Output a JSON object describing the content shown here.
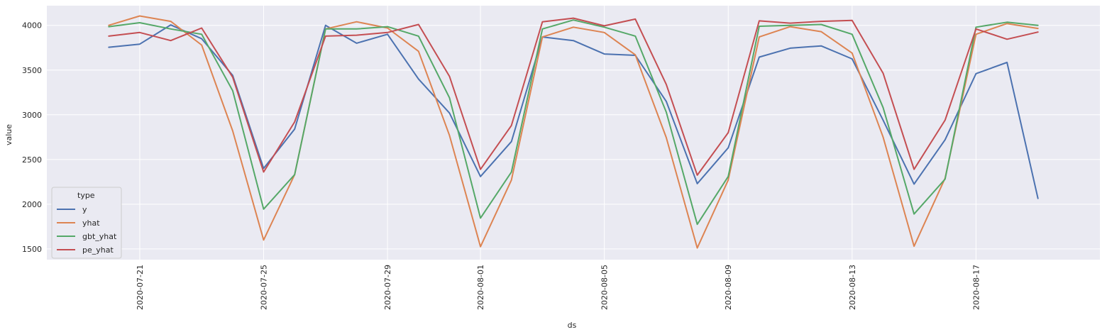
{
  "chart_data": {
    "type": "line",
    "xlabel": "ds",
    "ylabel": "value",
    "ylim": [
      1380,
      4220
    ],
    "xlim": [
      "2020-07-18",
      "2020-08-21"
    ],
    "grid": true,
    "legend_position": "lower-left",
    "legend_title": "type",
    "x": [
      "2020-07-20",
      "2020-07-21",
      "2020-07-22",
      "2020-07-23",
      "2020-07-24",
      "2020-07-25",
      "2020-07-26",
      "2020-07-27",
      "2020-07-28",
      "2020-07-29",
      "2020-07-30",
      "2020-07-31",
      "2020-08-01",
      "2020-08-02",
      "2020-08-03",
      "2020-08-04",
      "2020-08-05",
      "2020-08-06",
      "2020-08-07",
      "2020-08-08",
      "2020-08-09",
      "2020-08-10",
      "2020-08-11",
      "2020-08-12",
      "2020-08-13",
      "2020-08-14",
      "2020-08-15",
      "2020-08-16",
      "2020-08-17",
      "2020-08-18",
      "2020-08-19"
    ],
    "xticks": [
      "2020-07-21",
      "2020-07-25",
      "2020-07-29",
      "2020-08-01",
      "2020-08-05",
      "2020-08-09",
      "2020-08-13",
      "2020-08-17"
    ],
    "yticks": [
      1500,
      2000,
      2500,
      3000,
      3500,
      4000
    ],
    "series": [
      {
        "name": "y",
        "color": "#4c72b0",
        "values": [
          3755,
          3790,
          4005,
          3850,
          3440,
          2400,
          2840,
          4000,
          3800,
          3900,
          3400,
          3020,
          2310,
          2700,
          3870,
          3830,
          3680,
          3665,
          3150,
          2230,
          2630,
          3645,
          3745,
          3770,
          3625,
          2940,
          2225,
          2720,
          3460,
          3585,
          2065
        ]
      },
      {
        "name": "yhat",
        "color": "#dd8452",
        "values": [
          4000,
          4105,
          4045,
          3780,
          2820,
          1600,
          2330,
          3960,
          4040,
          3970,
          3710,
          2770,
          1525,
          2270,
          3870,
          3980,
          3920,
          3670,
          2745,
          1510,
          2270,
          3870,
          3985,
          3930,
          3690,
          2750,
          1530,
          2290,
          3900,
          4020,
          3965
        ]
      },
      {
        "name": "gbt_yhat",
        "color": "#55a868",
        "values": [
          3985,
          4030,
          3960,
          3900,
          3270,
          1945,
          2330,
          3960,
          3960,
          3985,
          3880,
          3190,
          1845,
          2360,
          3960,
          4060,
          3980,
          3880,
          3030,
          1775,
          2310,
          3990,
          4000,
          4010,
          3900,
          3080,
          1890,
          2280,
          3980,
          4035,
          4000
        ]
      },
      {
        "name": "pe_yhat",
        "color": "#c44e52",
        "values": [
          3880,
          3920,
          3830,
          3970,
          3420,
          2360,
          2920,
          3880,
          3890,
          3920,
          4010,
          3430,
          2390,
          2880,
          4040,
          4080,
          3995,
          4070,
          3340,
          2325,
          2800,
          4050,
          4025,
          4045,
          4055,
          3465,
          2390,
          2940,
          3960,
          3845,
          3925
        ]
      }
    ]
  }
}
